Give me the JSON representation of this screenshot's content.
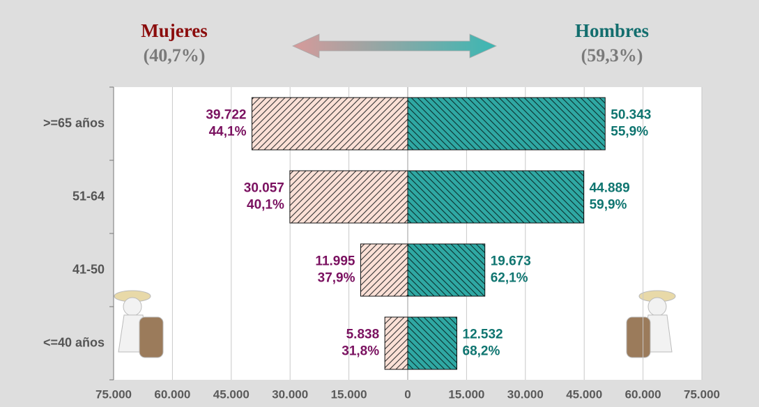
{
  "chart_data": {
    "type": "pyramid",
    "categories": [
      ">=65 años",
      "51-64",
      "41-50",
      "<=40 años"
    ],
    "series": [
      {
        "name": "Mujeres",
        "direction": "left",
        "color": "#fbe0d6",
        "hatch_color": "#333333",
        "label_color": "#7a1160",
        "title_color": "#8b0d0d",
        "total_share": 40.7,
        "total_share_label": "(40,7%)",
        "values": [
          39722,
          30057,
          11995,
          5838
        ],
        "value_labels": [
          "39.722",
          "30.057",
          "11.995",
          "5.838"
        ],
        "shares": [
          44.1,
          40.1,
          37.9,
          31.8
        ],
        "share_labels": [
          "44,1%",
          "40,1%",
          "37,9%",
          "31,8%"
        ]
      },
      {
        "name": "Hombres",
        "direction": "right",
        "color": "#2fa8a3",
        "hatch_color": "#0b2f2e",
        "label_color": "#0f7570",
        "title_color": "#136e6e",
        "total_share": 59.3,
        "total_share_label": "(59,3%)",
        "values": [
          50343,
          44889,
          19673,
          12532
        ],
        "value_labels": [
          "50.343",
          "44.889",
          "19.673",
          "12.532"
        ],
        "shares": [
          55.9,
          59.9,
          62.1,
          68.2
        ],
        "share_labels": [
          "55,9%",
          "59,9%",
          "62,1%",
          "68,2%"
        ]
      }
    ],
    "xlim": [
      -75000,
      75000
    ],
    "xticks": [
      {
        "value": -75000,
        "label": "75.000"
      },
      {
        "value": -60000,
        "label": "60.000"
      },
      {
        "value": -45000,
        "label": "45.000"
      },
      {
        "value": -30000,
        "label": "30.000"
      },
      {
        "value": -15000,
        "label": "15.000"
      },
      0,
      {
        "value": 15000,
        "label": "15.000"
      },
      {
        "value": 30000,
        "label": "30.000"
      },
      {
        "value": 45000,
        "label": "45.000"
      },
      {
        "value": 60000,
        "label": "60.000"
      },
      {
        "value": 75000,
        "label": "75.000"
      }
    ],
    "grid": true
  }
}
